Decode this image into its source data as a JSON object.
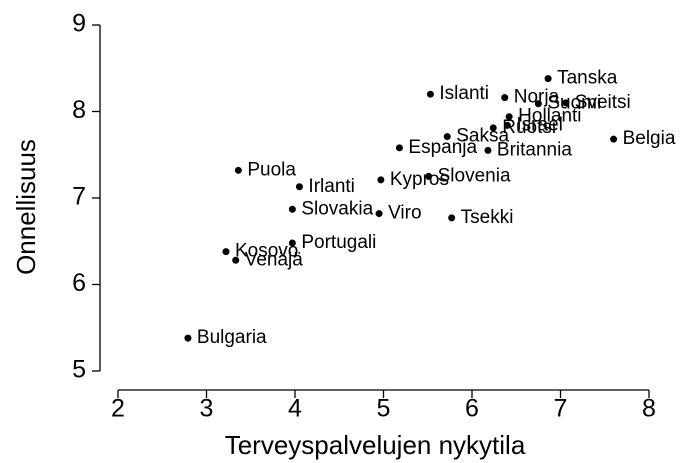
{
  "chart_data": {
    "type": "scatter",
    "xlabel": "Terveyspalvelujen nykytila",
    "ylabel": "Onnellisuus",
    "labels": [
      "Tanska",
      "Islanti",
      "Norja",
      "Suomi",
      "Sveitsi",
      "Hollanti",
      "Israel",
      "Ruotsi",
      "Saksa",
      "Belgia",
      "Espanja",
      "Britannia",
      "Puola",
      "Slovenia",
      "Kypros",
      "Irlanti",
      "Slovakia",
      "Viro",
      "Tsekki",
      "Portugali",
      "Kosovo",
      "Venäjä",
      "Bulgaria"
    ],
    "x": [
      6.86,
      5.53,
      6.37,
      6.75,
      7.06,
      6.42,
      6.4,
      6.24,
      5.72,
      7.6,
      5.18,
      6.18,
      3.36,
      5.51,
      4.97,
      4.05,
      3.97,
      4.95,
      5.77,
      3.97,
      3.22,
      3.33,
      2.79
    ],
    "values": [
      8.38,
      8.2,
      8.16,
      8.09,
      8.1,
      7.94,
      7.84,
      7.81,
      7.71,
      7.68,
      7.58,
      7.55,
      7.32,
      7.25,
      7.21,
      7.13,
      6.87,
      6.82,
      6.77,
      6.48,
      6.38,
      6.28,
      5.38
    ],
    "color": "#000000",
    "xlim": [
      1.8,
      8
    ],
    "ylim": [
      4.8,
      9
    ],
    "xticks": [
      2,
      3,
      4,
      5,
      6,
      7,
      8
    ],
    "yticks": [
      5,
      6,
      7,
      8,
      9
    ]
  }
}
